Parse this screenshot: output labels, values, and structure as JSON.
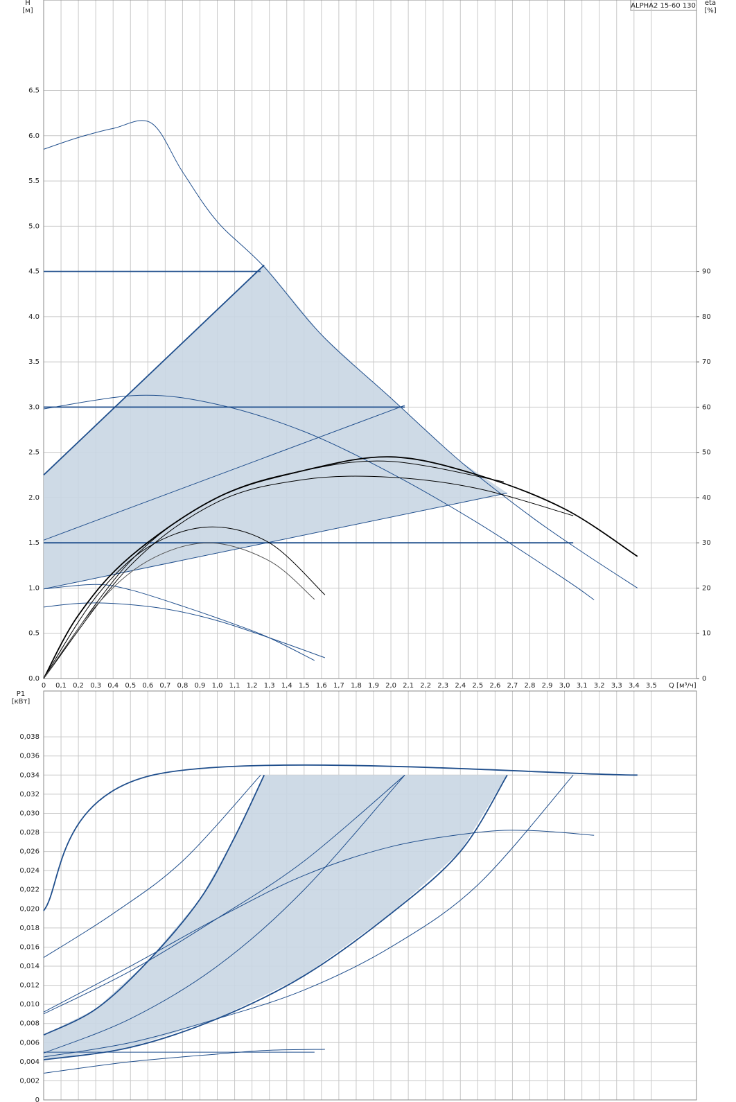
{
  "chart_data": [
    {
      "type": "line",
      "annotation": "ALPHA2 15-60 130",
      "ylabel": "H",
      "yunit": "[м]",
      "y2label": "eta",
      "y2unit": "[%]",
      "xlabel": "Q [м³/ч]",
      "xlim": [
        0,
        3.76
      ],
      "ylim": [
        0,
        7.5
      ],
      "y2lim": [
        0,
        150
      ],
      "grid": true,
      "xticks": [
        0,
        {
          "value": 0.1,
          "label": "0,1"
        },
        {
          "value": 0.2,
          "label": "0,2"
        },
        {
          "value": 0.3,
          "label": "0,3"
        },
        {
          "value": 0.4,
          "label": "0,4"
        },
        {
          "value": 0.5,
          "label": "0,5"
        },
        {
          "value": 0.6,
          "label": "0,6"
        },
        {
          "value": 0.7,
          "label": "0,7"
        },
        {
          "value": 0.8,
          "label": "0,8"
        },
        {
          "value": 0.9,
          "label": "0,9"
        },
        {
          "value": 1.0,
          "label": "1,0"
        },
        {
          "value": 1.1,
          "label": "1,1"
        },
        {
          "value": 1.2,
          "label": "1,2"
        },
        {
          "value": 1.3,
          "label": "1,3"
        },
        {
          "value": 1.4,
          "label": "1,4"
        },
        {
          "value": 1.5,
          "label": "1,5"
        },
        {
          "value": 1.6,
          "label": "1,6"
        },
        {
          "value": 1.7,
          "label": "1,7"
        },
        {
          "value": 1.8,
          "label": "1,8"
        },
        {
          "value": 1.9,
          "label": "1,9"
        },
        {
          "value": 2.0,
          "label": "2,0"
        },
        {
          "value": 2.1,
          "label": "2,1"
        },
        {
          "value": 2.2,
          "label": "2,2"
        },
        {
          "value": 2.3,
          "label": "2,3"
        },
        {
          "value": 2.4,
          "label": "2,4"
        },
        {
          "value": 2.5,
          "label": "2,5"
        },
        {
          "value": 2.6,
          "label": "2,6"
        },
        {
          "value": 2.7,
          "label": "2,7"
        },
        {
          "value": 2.8,
          "label": "2,8"
        },
        {
          "value": 2.9,
          "label": "2,9"
        },
        {
          "value": 3.0,
          "label": "3,0"
        },
        {
          "value": 3.1,
          "label": "3,1"
        },
        {
          "value": 3.2,
          "label": "3,2"
        },
        {
          "value": 3.3,
          "label": "3,3"
        },
        {
          "value": 3.4,
          "label": "3,4"
        },
        {
          "value": 3.5,
          "label": "3,5"
        }
      ],
      "yticks": [
        {
          "value": 0,
          "label": "0.0"
        },
        0.5,
        {
          "value": 1,
          "label": "1.0"
        },
        1.5,
        {
          "value": 2,
          "label": "2.0"
        },
        2.5,
        {
          "value": 3,
          "label": "3.0"
        },
        3.5,
        {
          "value": 4,
          "label": "4.0"
        },
        4.5,
        {
          "value": 5,
          "label": "5.0"
        },
        5.5,
        {
          "value": 6,
          "label": "6.0"
        },
        6.5
      ],
      "y2ticks": [
        0,
        10,
        20,
        30,
        40,
        50,
        60,
        70,
        80,
        90
      ],
      "series": [
        {
          "kind": "area",
          "color": "#c9d6e3",
          "x": [
            0,
            1.27,
            1.6,
            2.0,
            2.4,
            2.67,
            0
          ],
          "values": [
            2.25,
            4.57,
            3.8,
            3.1,
            2.4,
            2.05,
            0.99
          ]
        },
        {
          "kind": "line",
          "color": "#1f4e8c",
          "style": "thin",
          "x": [
            0,
            0.2,
            0.4,
            0.62,
            0.8,
            1.0,
            1.27,
            1.6,
            2.0,
            2.4,
            2.8,
            3.1,
            3.42
          ],
          "values": [
            5.85,
            5.98,
            6.08,
            6.14,
            5.6,
            5.05,
            4.55,
            3.8,
            3.1,
            2.4,
            1.8,
            1.4,
            1.0
          ]
        },
        {
          "kind": "line",
          "color": "#1f4e8c",
          "style": "thick",
          "x": [
            0,
            1.27
          ],
          "values": [
            2.25,
            4.57
          ]
        },
        {
          "kind": "line",
          "color": "#1f4e8c",
          "style": "thin",
          "x": [
            0,
            2.08
          ],
          "values": [
            1.53,
            3.02
          ]
        },
        {
          "kind": "line",
          "color": "#1f4e8c",
          "style": "thin",
          "x": [
            0,
            2.67
          ],
          "values": [
            0.99,
            2.05
          ]
        },
        {
          "kind": "line",
          "color": "#1f4e8c",
          "style": "thick",
          "x": [
            0,
            1.25
          ],
          "values": [
            4.5,
            4.5
          ]
        },
        {
          "kind": "line",
          "color": "#1f4e8c",
          "style": "thick",
          "x": [
            0,
            2.08
          ],
          "values": [
            3.0,
            3.0
          ]
        },
        {
          "kind": "line",
          "color": "#1f4e8c",
          "style": "thick",
          "x": [
            0,
            3.05
          ],
          "values": [
            1.5,
            1.5
          ]
        },
        {
          "kind": "line",
          "color": "#1f4e8c",
          "style": "thin",
          "x": [
            0,
            0.55,
            1.0,
            1.5,
            2.0,
            2.5,
            3.0,
            3.17
          ],
          "values": [
            2.98,
            3.13,
            3.03,
            2.73,
            2.27,
            1.72,
            1.1,
            0.87
          ]
        },
        {
          "kind": "line",
          "color": "#1f4e8c",
          "style": "thin",
          "x": [
            0,
            0.2,
            0.4,
            0.7,
            1.0,
            1.3,
            1.62
          ],
          "values": [
            0.79,
            0.83,
            0.83,
            0.77,
            0.64,
            0.45,
            0.23
          ]
        },
        {
          "kind": "line",
          "color": "#1f4e8c",
          "style": "thin",
          "x": [
            0,
            0.3,
            0.5,
            0.8,
            1.1,
            1.3,
            1.56
          ],
          "values": [
            0.99,
            1.04,
            0.98,
            0.8,
            0.6,
            0.45,
            0.2
          ]
        },
        {
          "kind": "line",
          "color": "#000000",
          "style": "thick",
          "axis": "y2",
          "x": [
            0,
            0.2,
            0.5,
            1.0,
            1.5,
            2.0,
            2.5,
            3.0,
            3.42
          ],
          "values": [
            0,
            14,
            27,
            40,
            46,
            49,
            45,
            37.5,
            27
          ]
        },
        {
          "kind": "line",
          "color": "#000000",
          "style": "thin",
          "axis": "y2",
          "x": [
            0,
            0.5,
            1.0,
            1.5,
            2.0,
            2.5,
            3.05
          ],
          "values": [
            0,
            25,
            39,
            44,
            44.5,
            42,
            36
          ]
        },
        {
          "kind": "line",
          "color": "#000000",
          "style": "thin",
          "axis": "y2",
          "x": [
            0,
            0.5,
            1.0,
            1.5,
            2.0,
            2.65
          ],
          "values": [
            0,
            26,
            40,
            46,
            48,
            43.5
          ]
        },
        {
          "kind": "line",
          "color": "#000000",
          "style": "thin",
          "axis": "y2",
          "x": [
            0,
            0.3,
            0.6,
            0.95,
            1.3,
            1.62
          ],
          "values": [
            0,
            18,
            29,
            33.5,
            30,
            18.5
          ]
        },
        {
          "kind": "line",
          "color": "#555555",
          "style": "thin",
          "axis": "y2",
          "x": [
            0,
            0.3,
            0.6,
            0.95,
            1.3,
            1.56
          ],
          "values": [
            0,
            16,
            26,
            30,
            26,
            17.5
          ]
        }
      ]
    },
    {
      "type": "line",
      "ylabel": "P1",
      "yunit": "[кВт]",
      "xlim": [
        0,
        3.76
      ],
      "ylim": [
        0,
        0.0428
      ],
      "grid": true,
      "yticks": [
        0,
        {
          "value": 0.002,
          "label": "0,002"
        },
        {
          "value": 0.004,
          "label": "0,004"
        },
        {
          "value": 0.006,
          "label": "0,006"
        },
        {
          "value": 0.008,
          "label": "0,008"
        },
        {
          "value": 0.01,
          "label": "0,010"
        },
        {
          "value": 0.012,
          "label": "0,012"
        },
        {
          "value": 0.014,
          "label": "0,014"
        },
        {
          "value": 0.016,
          "label": "0,016"
        },
        {
          "value": 0.018,
          "label": "0,018"
        },
        {
          "value": 0.02,
          "label": "0,020"
        },
        {
          "value": 0.022,
          "label": "0,022"
        },
        {
          "value": 0.024,
          "label": "0,024"
        },
        {
          "value": 0.026,
          "label": "0,026"
        },
        {
          "value": 0.028,
          "label": "0,028"
        },
        {
          "value": 0.03,
          "label": "0,030"
        },
        {
          "value": 0.032,
          "label": "0,032"
        },
        {
          "value": 0.034,
          "label": "0,034"
        },
        {
          "value": 0.036,
          "label": "0,036"
        },
        {
          "value": 0.038,
          "label": "0,038"
        }
      ],
      "series": [
        {
          "kind": "area",
          "color": "#c9d6e3",
          "x": [
            0,
            0.3,
            0.6,
            0.9,
            1.1,
            1.27,
            2.67,
            2.4,
            2.0,
            1.5,
            1.0,
            0.5,
            0
          ],
          "values": [
            0.0068,
            0.0095,
            0.0145,
            0.021,
            0.0275,
            0.034,
            0.034,
            0.026,
            0.0195,
            0.013,
            0.0085,
            0.0055,
            0.0042
          ]
        },
        {
          "kind": "line",
          "color": "#1f4e8c",
          "style": "thick",
          "x": [
            0,
            0.63,
            3.42
          ],
          "values": [
            0.0198,
            0.034,
            0.034
          ]
        },
        {
          "kind": "line",
          "color": "#1f4e8c",
          "style": "thick",
          "x": [
            0,
            0.3,
            0.6,
            0.9,
            1.1,
            1.27
          ],
          "values": [
            0.0068,
            0.0095,
            0.0145,
            0.021,
            0.0275,
            0.034
          ]
        },
        {
          "kind": "line",
          "color": "#1f4e8c",
          "style": "thin",
          "x": [
            0,
            0.5,
            1.0,
            1.5,
            2.08
          ],
          "values": [
            0.0049,
            0.0085,
            0.014,
            0.022,
            0.034
          ]
        },
        {
          "kind": "line",
          "color": "#1f4e8c",
          "style": "thick",
          "x": [
            0,
            0.5,
            1.0,
            1.5,
            2.0,
            2.4,
            2.67
          ],
          "values": [
            0.0042,
            0.0055,
            0.0085,
            0.013,
            0.0195,
            0.026,
            0.034
          ]
        },
        {
          "kind": "line",
          "color": "#1f4e8c",
          "style": "thin",
          "x": [
            0,
            0.5,
            1.0,
            1.5,
            2.0,
            2.5,
            3.05
          ],
          "values": [
            0.0045,
            0.006,
            0.0085,
            0.0115,
            0.016,
            0.0225,
            0.034
          ]
        },
        {
          "kind": "line",
          "color": "#1f4e8c",
          "style": "thin",
          "x": [
            0,
            0.4,
            0.8,
            1.25
          ],
          "values": [
            0.0149,
            0.0195,
            0.025,
            0.034
          ]
        },
        {
          "kind": "line",
          "color": "#1f4e8c",
          "style": "thin",
          "x": [
            0,
            0.5,
            1.0,
            1.5,
            2.08
          ],
          "values": [
            0.009,
            0.0135,
            0.019,
            0.025,
            0.034
          ]
        },
        {
          "kind": "line",
          "color": "#1f4e8c",
          "style": "thin",
          "x": [
            0,
            0.5,
            1.0,
            1.5,
            2.0,
            2.5,
            2.8,
            3.17
          ],
          "values": [
            0.0092,
            0.014,
            0.019,
            0.0235,
            0.0265,
            0.028,
            0.0282,
            0.0277
          ]
        },
        {
          "kind": "line",
          "color": "#1f4e8c",
          "style": "thin",
          "x": [
            0,
            0.5,
            1.0,
            1.3,
            1.62
          ],
          "values": [
            0.0028,
            0.004,
            0.0048,
            0.0052,
            0.0053
          ]
        },
        {
          "kind": "line",
          "color": "#1f4e8c",
          "style": "thin",
          "x": [
            0,
            1.56
          ],
          "values": [
            0.005,
            0.005
          ]
        }
      ]
    }
  ]
}
